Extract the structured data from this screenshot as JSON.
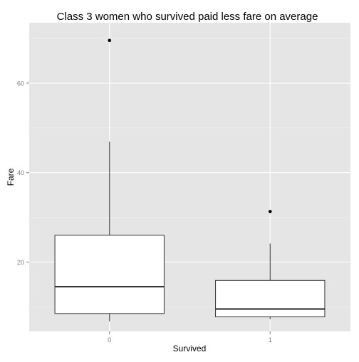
{
  "chart_data": {
    "type": "boxplot",
    "title": "Class 3 women who survived paid less fare on average",
    "xlabel": "Survived",
    "ylabel": "Fare",
    "categories": [
      "0",
      "1"
    ],
    "ylim": [
      4.5,
      73.5
    ],
    "yticks": [
      20,
      40,
      60
    ],
    "grid": true,
    "legend": "none",
    "boxes": [
      {
        "category": "0",
        "whisker_low": 6.75,
        "q1": 8.5,
        "median": 14.5,
        "q3": 26.0,
        "whisker_high": 46.9,
        "outliers": [
          69.55
        ]
      },
      {
        "category": "1",
        "whisker_low": 7.25,
        "q1": 7.75,
        "median": 9.5,
        "q3": 15.9,
        "whisker_high": 24.15,
        "outliers": [
          31.3
        ]
      }
    ]
  },
  "colors": {
    "panel_bg": "#e5e5e5",
    "grid_major": "#ffffff",
    "box_fill": "#ffffff",
    "box_stroke": "#333333",
    "median": "#222222",
    "outlier": "#000000",
    "tick_text": "#7f7f7f",
    "title_text": "#000000"
  }
}
